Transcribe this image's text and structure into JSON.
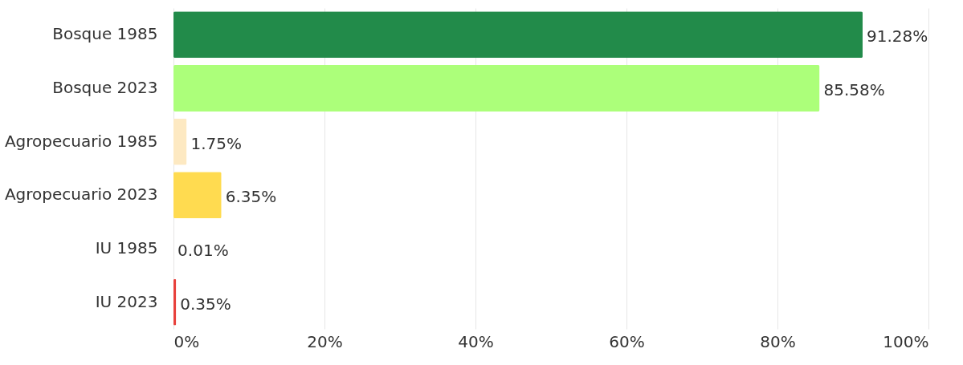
{
  "chart_data": {
    "type": "bar",
    "orientation": "horizontal",
    "categories": [
      "Bosque 1985",
      "Bosque 2023",
      "Agropecuario 1985",
      "Agropecuario 2023",
      "IU 1985",
      "IU 2023"
    ],
    "values": [
      91.28,
      85.58,
      1.75,
      6.35,
      0.01,
      0.35
    ],
    "colors": [
      "#228b4a",
      "#acff7a",
      "#fde9c2",
      "#ffdb50",
      "#e8413c",
      "#e8413c"
    ],
    "value_labels": [
      "91.28%",
      "85.58%",
      "1.75%",
      "6.35%",
      "0.01%",
      "0.35%"
    ],
    "xlim": [
      0,
      100
    ],
    "xticks": [
      {
        "value": 0,
        "label": "0%"
      },
      {
        "value": 20,
        "label": "20%"
      },
      {
        "value": 40,
        "label": "40%"
      },
      {
        "value": 60,
        "label": "60%"
      },
      {
        "value": 80,
        "label": "80%"
      },
      {
        "value": 100,
        "label": "100%"
      }
    ],
    "grid": "x"
  }
}
